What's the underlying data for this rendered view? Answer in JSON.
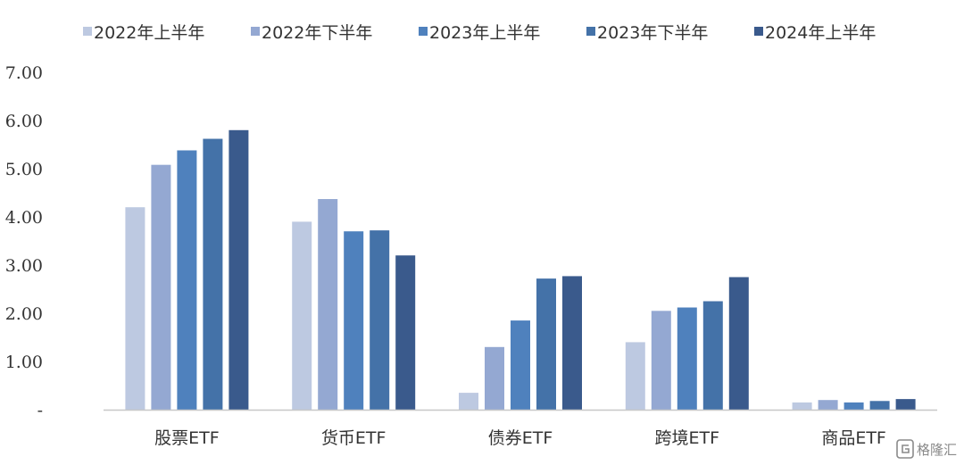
{
  "chart_data": {
    "type": "bar",
    "categories": [
      "股票ETF",
      "货币ETF",
      "债券ETF",
      "跨境ETF",
      "商品ETF"
    ],
    "series": [
      {
        "name": "2022年上半年",
        "color": "#bdc9e1",
        "values": [
          4.2,
          3.9,
          0.35,
          1.4,
          0.15
        ]
      },
      {
        "name": "2022年下半年",
        "color": "#94a8d2",
        "values": [
          5.08,
          4.37,
          1.3,
          2.05,
          0.2
        ]
      },
      {
        "name": "2023年上半年",
        "color": "#4f81bd",
        "values": [
          5.38,
          3.7,
          1.85,
          2.12,
          0.15
        ]
      },
      {
        "name": "2023年下半年",
        "color": "#4472a8",
        "values": [
          5.62,
          3.72,
          2.72,
          2.25,
          0.18
        ]
      },
      {
        "name": "2024年上半年",
        "color": "#3a5a8c",
        "values": [
          5.8,
          3.2,
          2.77,
          2.75,
          0.22
        ]
      }
    ],
    "ylim": [
      0,
      7
    ],
    "yticks": [
      "-",
      "1.00",
      "2.00",
      "3.00",
      "4.00",
      "5.00",
      "6.00",
      "7.00"
    ],
    "legend_position": "top",
    "grid": false
  },
  "watermark": {
    "icon": "gelonghui-logo-icon",
    "text": "格隆汇"
  }
}
